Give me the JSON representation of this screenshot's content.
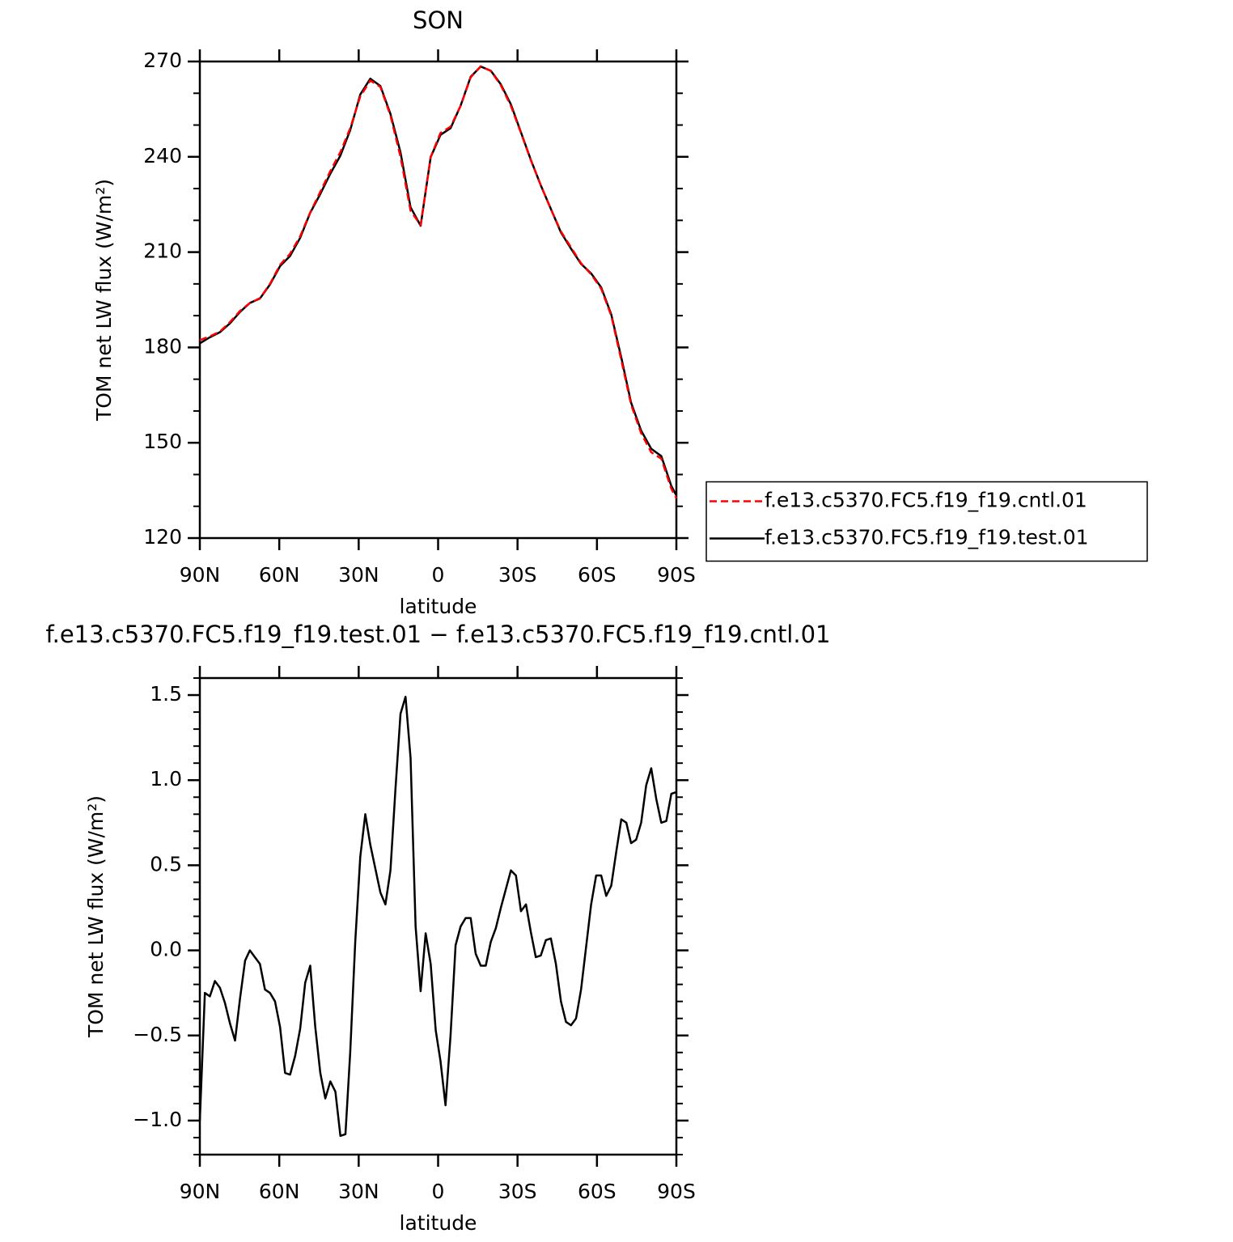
{
  "chart_data": [
    {
      "type": "line",
      "title": "SON",
      "xlabel": "latitude",
      "ylabel": "TOM net LW flux (W/m²)",
      "x": [
        90,
        86.2,
        82.4,
        78.6,
        74.8,
        71.1,
        67.3,
        63.5,
        59.7,
        55.9,
        52.1,
        48.3,
        44.5,
        40.7,
        36.9,
        33.2,
        29.4,
        25.6,
        21.8,
        18.0,
        14.2,
        10.4,
        6.6,
        2.8,
        -0.9,
        -4.7,
        -8.5,
        -12.3,
        -16.1,
        -19.9,
        -23.7,
        -27.5,
        -31.3,
        -35.0,
        -38.8,
        -42.6,
        -46.4,
        -50.2,
        -54.0,
        -57.8,
        -61.6,
        -65.4,
        -69.2,
        -72.9,
        -76.7,
        -80.5,
        -84.3,
        -88.1,
        -90
      ],
      "series": [
        {
          "name": "f.e13.c5370.FC5.f19_f19.cntl.01",
          "color": "#ff0000",
          "linestyle": "dashed",
          "values": [
            182.3,
            183.5,
            185,
            188,
            191.5,
            194,
            195.5,
            200,
            206,
            209.5,
            215,
            222.5,
            229,
            235.5,
            241.5,
            249,
            259,
            264,
            262,
            253,
            240,
            223,
            218.5,
            240,
            247.5,
            249.5,
            256,
            265,
            268.5,
            267,
            262.5,
            256,
            247.5,
            239,
            231,
            223.5,
            216.5,
            211.5,
            206.5,
            203,
            198.5,
            190,
            176,
            162,
            153,
            147,
            145,
            135.5,
            132.5
          ]
        },
        {
          "name": "f.e13.c5370.FC5.f19_f19.test.01",
          "color": "#000000",
          "linestyle": "solid",
          "values": [
            181.3,
            183.2,
            184.8,
            187.6,
            191.2,
            194,
            195.4,
            199.8,
            205.6,
            208.8,
            214.5,
            222.4,
            228.3,
            234.7,
            240.4,
            248.4,
            259.6,
            264.6,
            262.3,
            253.5,
            241.4,
            224.1,
            218.3,
            239.9,
            246.9,
            249,
            256.1,
            265.2,
            268.4,
            267.1,
            262.8,
            256.5,
            247.7,
            239.1,
            231,
            223.6,
            216.2,
            211.1,
            206.3,
            203.3,
            198.9,
            190.4,
            176.8,
            162.6,
            153.8,
            148.1,
            145.8,
            136.4,
            133.4
          ]
        }
      ],
      "xlim": [
        90,
        -90
      ],
      "xticks": [
        {
          "value": 90,
          "label": "90N"
        },
        {
          "value": 60,
          "label": "60N"
        },
        {
          "value": 30,
          "label": "30N"
        },
        0,
        {
          "value": -30,
          "label": "30S"
        },
        {
          "value": -60,
          "label": "60S"
        },
        {
          "value": -90,
          "label": "90S"
        }
      ],
      "ylim": [
        120,
        270
      ],
      "yticks": [
        120,
        150,
        180,
        210,
        240,
        270
      ],
      "yminorticks": [
        130,
        140,
        160,
        170,
        190,
        200,
        220,
        230,
        250,
        260
      ],
      "legend": "right"
    },
    {
      "type": "line",
      "title": "f.e13.c5370.FC5.f19_f19.test.01 − f.e13.c5370.FC5.f19_f19.cntl.01",
      "xlabel": "latitude",
      "ylabel": "TOM net LW flux (W/m²)",
      "x": [
        90,
        88.1,
        86.2,
        84.3,
        82.4,
        80.5,
        78.6,
        76.7,
        74.8,
        72.9,
        71.1,
        69.2,
        67.3,
        65.4,
        63.5,
        61.6,
        59.7,
        57.8,
        55.9,
        54.0,
        52.1,
        50.2,
        48.3,
        46.4,
        44.5,
        42.6,
        40.7,
        38.8,
        36.9,
        35.0,
        33.2,
        31.3,
        29.4,
        27.5,
        25.6,
        23.7,
        21.8,
        19.9,
        18.0,
        16.1,
        14.2,
        12.3,
        10.4,
        8.5,
        6.6,
        4.7,
        2.8,
        0.9,
        -0.9,
        -2.8,
        -4.7,
        -6.6,
        -8.5,
        -10.4,
        -12.3,
        -14.2,
        -16.1,
        -18.0,
        -19.9,
        -21.8,
        -23.7,
        -25.6,
        -27.5,
        -29.4,
        -31.3,
        -33.2,
        -35.0,
        -36.9,
        -38.8,
        -40.7,
        -42.6,
        -44.5,
        -46.4,
        -48.3,
        -50.2,
        -52.1,
        -54.0,
        -55.9,
        -57.8,
        -59.7,
        -61.6,
        -63.5,
        -65.4,
        -67.3,
        -69.2,
        -71.1,
        -72.9,
        -74.8,
        -76.7,
        -78.6,
        -80.5,
        -82.4,
        -84.3,
        -86.2,
        -88.1,
        -90
      ],
      "values": [
        -1.0,
        -0.25,
        -0.27,
        -0.18,
        -0.22,
        -0.31,
        -0.43,
        -0.53,
        -0.28,
        -0.06,
        0.0,
        -0.04,
        -0.08,
        -0.23,
        -0.25,
        -0.3,
        -0.45,
        -0.72,
        -0.73,
        -0.62,
        -0.46,
        -0.19,
        -0.09,
        -0.45,
        -0.72,
        -0.87,
        -0.77,
        -0.83,
        -1.09,
        -1.08,
        -0.6,
        0.05,
        0.55,
        0.8,
        0.62,
        0.48,
        0.34,
        0.27,
        0.47,
        0.95,
        1.39,
        1.49,
        1.13,
        0.14,
        -0.24,
        0.1,
        -0.08,
        -0.47,
        -0.65,
        -0.91,
        -0.5,
        0.03,
        0.14,
        0.19,
        0.19,
        -0.02,
        -0.09,
        -0.09,
        0.05,
        0.13,
        0.25,
        0.36,
        0.47,
        0.44,
        0.23,
        0.27,
        0.11,
        -0.04,
        -0.03,
        0.06,
        0.07,
        -0.08,
        -0.3,
        -0.42,
        -0.44,
        -0.4,
        -0.23,
        0.02,
        0.27,
        0.44,
        0.44,
        0.32,
        0.38,
        0.58,
        0.77,
        0.75,
        0.63,
        0.65,
        0.75,
        0.97,
        1.07,
        0.89,
        0.75,
        0.76,
        0.92,
        0.93
      ],
      "color": "#000000",
      "xlim": [
        90,
        -90
      ],
      "xticks": [
        {
          "value": 90,
          "label": "90N"
        },
        {
          "value": 60,
          "label": "60N"
        },
        {
          "value": 30,
          "label": "30N"
        },
        0,
        {
          "value": -30,
          "label": "30S"
        },
        {
          "value": -60,
          "label": "60S"
        },
        {
          "value": -90,
          "label": "90S"
        }
      ],
      "ylim": [
        -1.2,
        1.6
      ],
      "yticks": [
        {
          "value": -1,
          "label": "−1.0"
        },
        {
          "value": -0.5,
          "label": "−0.5"
        },
        {
          "value": 0,
          "label": "0.0"
        },
        0.5,
        {
          "value": 1,
          "label": "1.0"
        },
        1.5
      ],
      "yminorticks": [
        -1.2,
        -1.1,
        -0.9,
        -0.8,
        -0.7,
        -0.6,
        -0.4,
        -0.3,
        -0.2,
        -0.1,
        0.1,
        0.2,
        0.3,
        0.4,
        0.6,
        0.7,
        0.8,
        0.9,
        1.1,
        1.2,
        1.3,
        1.4,
        1.6
      ]
    }
  ]
}
